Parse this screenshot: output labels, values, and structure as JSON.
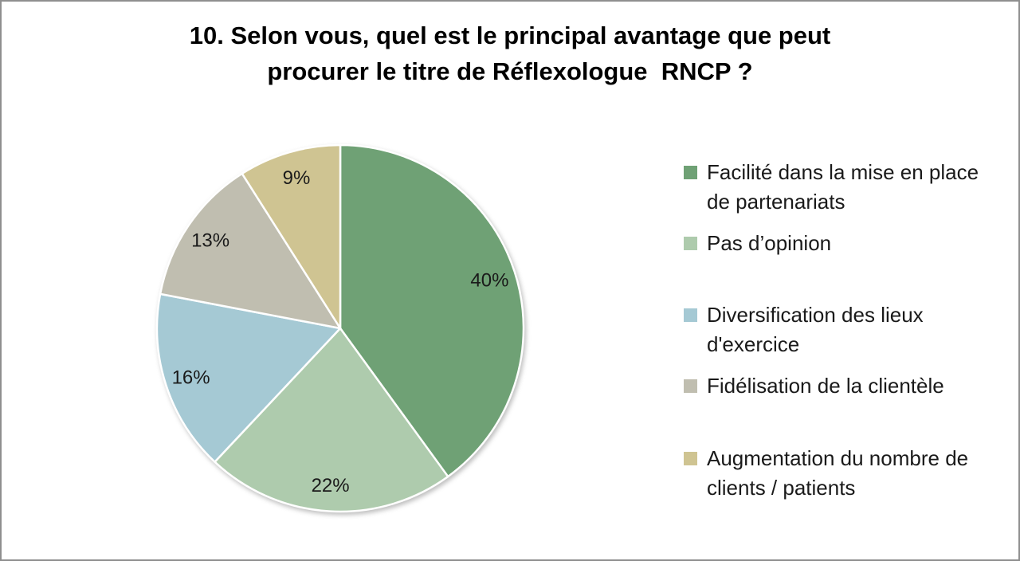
{
  "page": {
    "background": "#ffffff",
    "border_color": "#8f8f8f"
  },
  "title": {
    "line1": "10. Selon vous, quel est le principal avantage que peut",
    "line2": "procurer le titre de Réflexologue  RNCP ?"
  },
  "chart_data": {
    "type": "pie",
    "title": "10. Selon vous, quel est le principal avantage que peut procurer le titre de Réflexologue  RNCP ?",
    "start_angle_deg": 0,
    "direction": "clockwise",
    "legend_position": "right",
    "label_color": "#1a1a1a",
    "slice_border_color": "#ffffff",
    "slices": [
      {
        "label": "Facilité dans la mise en place de partenariats",
        "value_pct": 40,
        "display": "40%",
        "color": "#6fa175"
      },
      {
        "label": "Pas d’opinion",
        "value_pct": 22,
        "display": "22%",
        "color": "#aecbad"
      },
      {
        "label": "Diversification des lieux d'exercice",
        "value_pct": 16,
        "display": "16%",
        "color": "#a5c9d4"
      },
      {
        "label": "Fidélisation de la clientèle",
        "value_pct": 13,
        "display": "13%",
        "color": "#c0beb0"
      },
      {
        "label": "Augmentation du nombre de clients / patients",
        "value_pct": 9,
        "display": "9%",
        "color": "#cfc492"
      }
    ]
  }
}
